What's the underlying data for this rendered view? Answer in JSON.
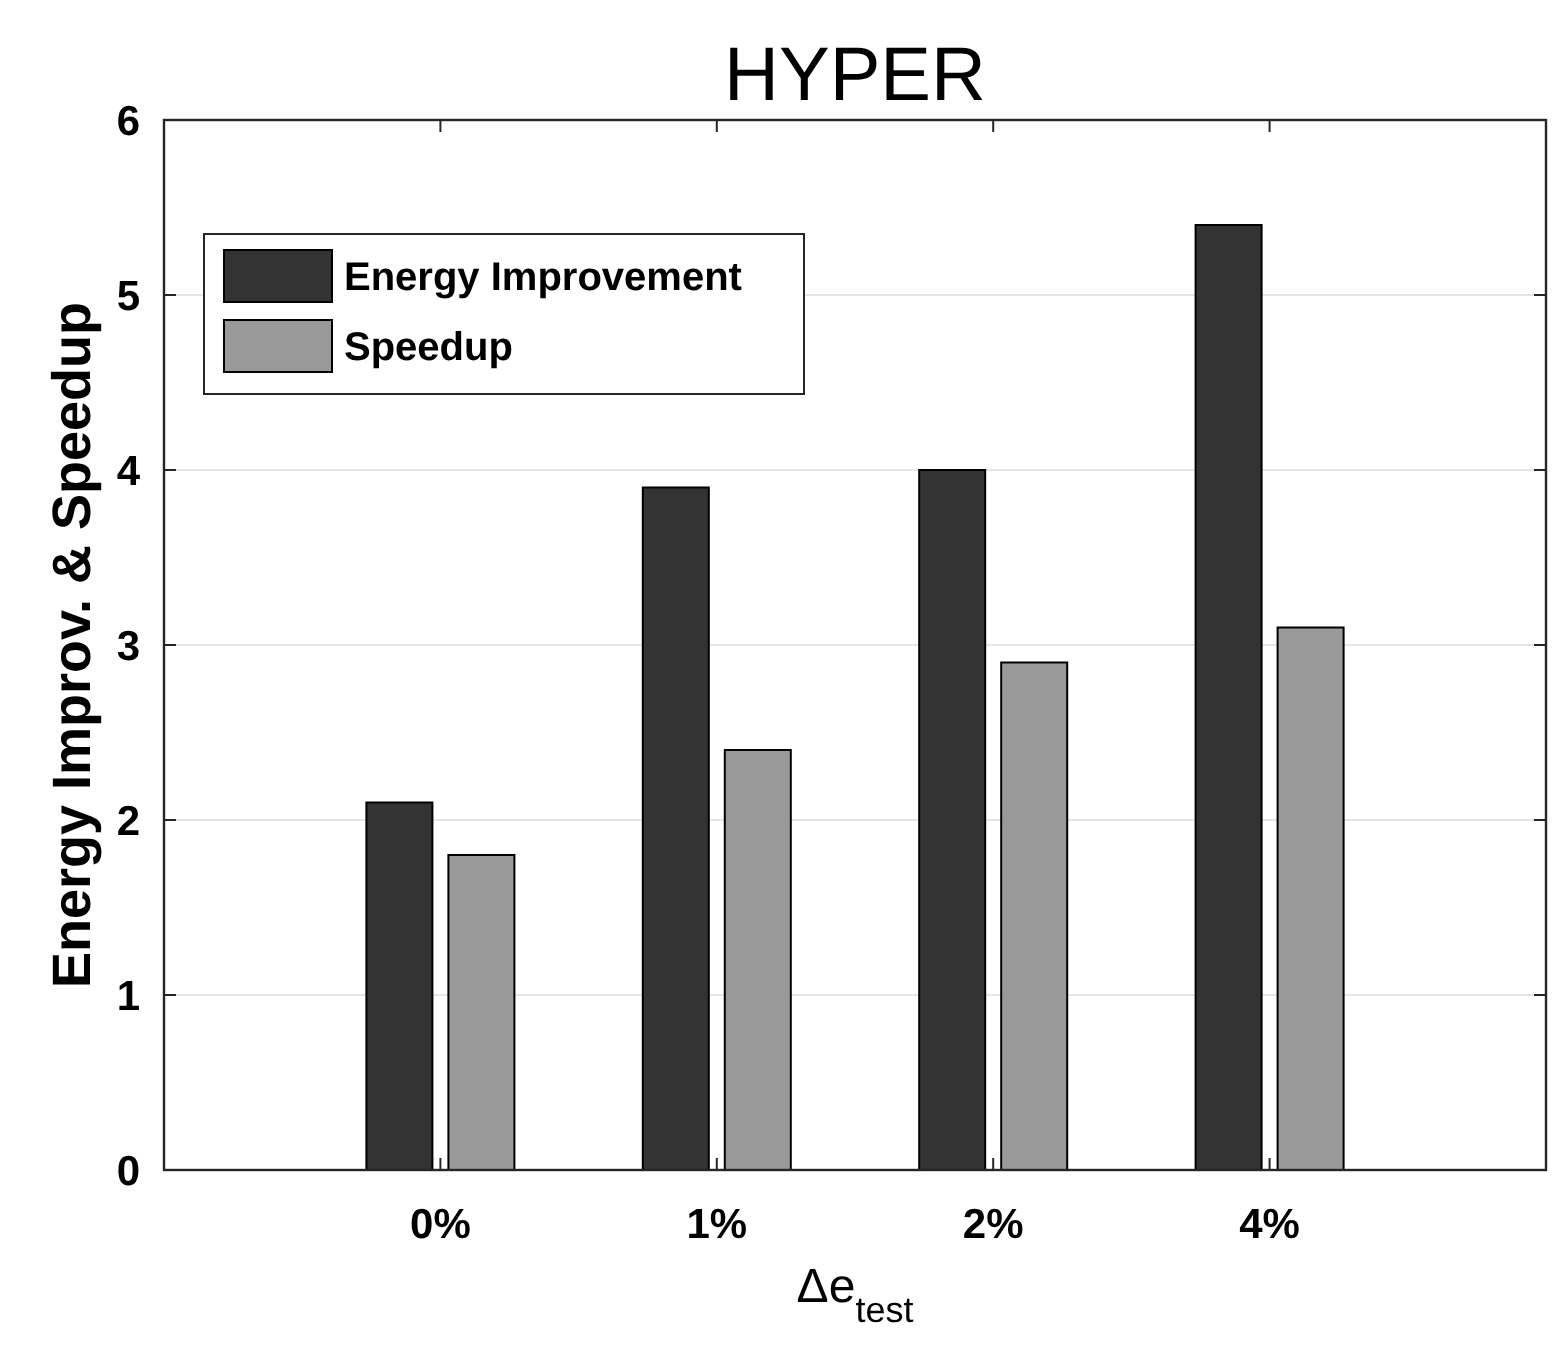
{
  "chart_data": {
    "type": "bar",
    "title": "HYPER",
    "xlabel": "Δe$_{test}$",
    "ylabel": "Energy Improv. & Speedup",
    "categories": [
      "0%",
      "1%",
      "2%",
      "4%"
    ],
    "series": [
      {
        "name": "Energy Improvement",
        "color": "#333333",
        "values": [
          2.1,
          3.9,
          4.0,
          5.4
        ]
      },
      {
        "name": "Speedup",
        "color": "#999999",
        "values": [
          1.8,
          2.4,
          2.9,
          3.1
        ]
      }
    ],
    "ylim": [
      0,
      6
    ],
    "yticks": [
      0,
      1,
      2,
      3,
      4,
      5,
      6
    ],
    "grid": "y",
    "legend": "top left"
  }
}
